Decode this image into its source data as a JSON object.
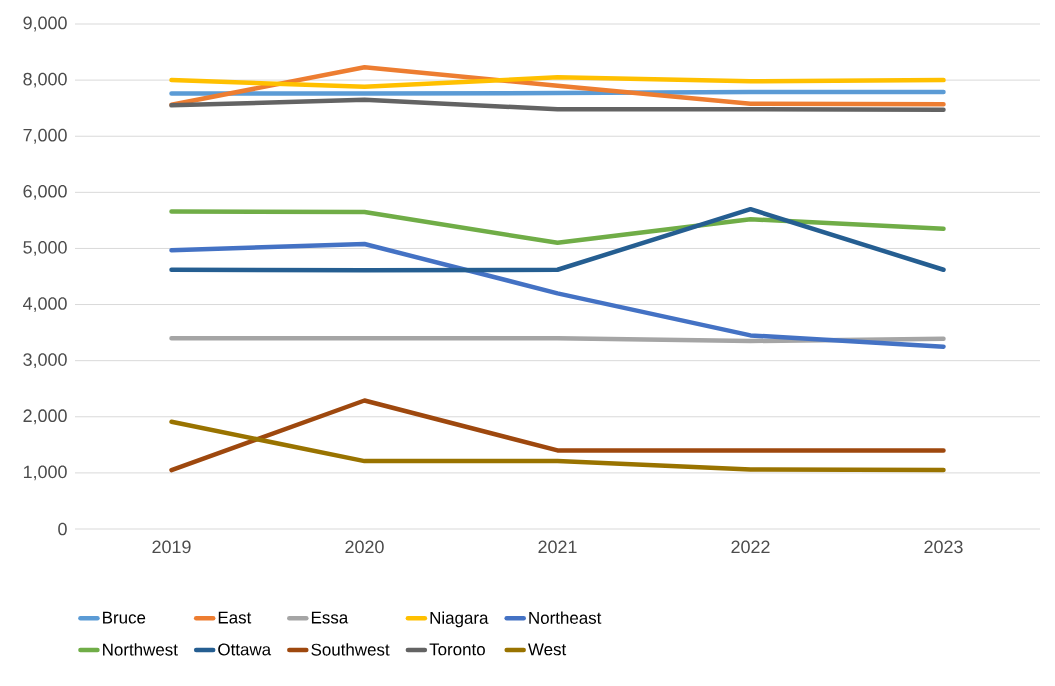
{
  "chart_data": {
    "type": "line",
    "categories": [
      "2019",
      "2020",
      "2021",
      "2022",
      "2023"
    ],
    "series": [
      {
        "name": "Bruce",
        "color": "#5b9bd5",
        "values": [
          7760,
          7760,
          7770,
          7790,
          7790
        ]
      },
      {
        "name": "East",
        "color": "#ed7d31",
        "values": [
          7560,
          8230,
          7900,
          7580,
          7570
        ]
      },
      {
        "name": "Essa",
        "color": "#a5a5a5",
        "values": [
          3400,
          3400,
          3400,
          3350,
          3390
        ]
      },
      {
        "name": "Niagara",
        "color": "#ffc000",
        "values": [
          8000,
          7880,
          8050,
          7980,
          8000
        ]
      },
      {
        "name": "Northeast",
        "color": "#4472c4",
        "values": [
          4970,
          5080,
          4200,
          3450,
          3250
        ]
      },
      {
        "name": "Northwest",
        "color": "#70ad47",
        "values": [
          5660,
          5650,
          5100,
          5520,
          5350
        ]
      },
      {
        "name": "Ottawa",
        "color": "#255e91",
        "values": [
          4620,
          4610,
          4620,
          5700,
          4620
        ]
      },
      {
        "name": "Southwest",
        "color": "#9e480e",
        "values": [
          1050,
          2290,
          1400,
          1400,
          1400
        ]
      },
      {
        "name": "Toronto",
        "color": "#636363",
        "values": [
          7550,
          7650,
          7480,
          7480,
          7470
        ]
      },
      {
        "name": "West",
        "color": "#997300",
        "values": [
          1910,
          1210,
          1210,
          1060,
          1050
        ]
      }
    ],
    "ylim": [
      0,
      9000
    ],
    "yticks": [
      0,
      {
        "value": 1000,
        "label": "1,000"
      },
      {
        "value": 2000,
        "label": "2,000"
      },
      {
        "value": 3000,
        "label": "3,000"
      },
      {
        "value": 4000,
        "label": "4,000"
      },
      {
        "value": 5000,
        "label": "5,000"
      },
      {
        "value": 6000,
        "label": "6,000"
      },
      {
        "value": 7000,
        "label": "7,000"
      },
      {
        "value": 8000,
        "label": "8,000"
      },
      {
        "value": 9000,
        "label": "9,000"
      }
    ],
    "grid": "y",
    "legend": "bottom",
    "marker": "none",
    "line_style": "solid"
  }
}
